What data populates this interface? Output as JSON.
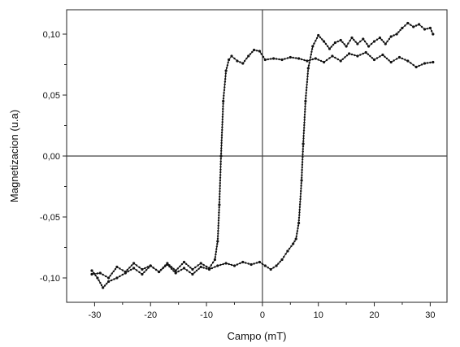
{
  "chart_data": {
    "type": "scatter",
    "title": "",
    "xlabel": "Campo (mT)",
    "ylabel": "Magnetizacion (u.a)",
    "xlim": [
      -35,
      33
    ],
    "ylim": [
      -0.12,
      0.12
    ],
    "x_ticks": [
      -30,
      -20,
      -10,
      0,
      10,
      20,
      30
    ],
    "x_tick_labels": [
      "-30",
      "-20",
      "-10",
      "0",
      "10",
      "20",
      "30"
    ],
    "y_ticks": [
      -0.1,
      -0.05,
      0.0,
      0.05,
      0.1
    ],
    "y_tick_labels": [
      "-0,10",
      "-0,05",
      "0,00",
      "0,05",
      "0,10"
    ],
    "grid": false,
    "zero_lines": true,
    "marker_color": "#111111",
    "series": [
      {
        "points": [
          [
            30.5,
            0.077
          ],
          [
            29,
            0.076
          ],
          [
            27.5,
            0.073
          ],
          [
            26,
            0.078
          ],
          [
            24.5,
            0.081
          ],
          [
            23,
            0.077
          ],
          [
            21.5,
            0.083
          ],
          [
            20,
            0.079
          ],
          [
            18.5,
            0.085
          ],
          [
            17,
            0.082
          ],
          [
            15.5,
            0.084
          ],
          [
            14,
            0.078
          ],
          [
            12.5,
            0.082
          ],
          [
            11,
            0.077
          ],
          [
            9.5,
            0.08
          ],
          [
            8,
            0.078
          ],
          [
            6.5,
            0.08
          ],
          [
            5,
            0.081
          ],
          [
            3.5,
            0.079
          ],
          [
            2,
            0.08
          ],
          [
            0.5,
            0.079
          ],
          [
            -0.5,
            0.086
          ],
          [
            -1.5,
            0.087
          ],
          [
            -2.5,
            0.082
          ],
          [
            -3.5,
            0.076
          ],
          [
            -4.5,
            0.078
          ],
          [
            -5.5,
            0.082
          ],
          [
            -6,
            0.079
          ],
          [
            -6.5,
            0.07
          ],
          [
            -7,
            0.045
          ],
          [
            -7.4,
            0.0
          ],
          [
            -7.7,
            -0.04
          ],
          [
            -8,
            -0.07
          ],
          [
            -8.5,
            -0.085
          ],
          [
            -9.5,
            -0.092
          ],
          [
            -11,
            -0.088
          ],
          [
            -12.5,
            -0.093
          ],
          [
            -14,
            -0.087
          ],
          [
            -15.5,
            -0.094
          ],
          [
            -17,
            -0.088
          ],
          [
            -18.5,
            -0.095
          ],
          [
            -20,
            -0.09
          ],
          [
            -21.5,
            -0.093
          ],
          [
            -23,
            -0.088
          ],
          [
            -24.5,
            -0.095
          ],
          [
            -26,
            -0.091
          ],
          [
            -27.5,
            -0.1
          ],
          [
            -29,
            -0.096
          ],
          [
            -30.5,
            -0.097
          ]
        ]
      },
      {
        "points": [
          [
            -30.5,
            -0.094
          ],
          [
            -29.5,
            -0.1
          ],
          [
            -28.5,
            -0.108
          ],
          [
            -27.5,
            -0.103
          ],
          [
            -26,
            -0.1
          ],
          [
            -24.5,
            -0.096
          ],
          [
            -23,
            -0.092
          ],
          [
            -21.5,
            -0.097
          ],
          [
            -20,
            -0.09
          ],
          [
            -18.5,
            -0.095
          ],
          [
            -17,
            -0.089
          ],
          [
            -15.5,
            -0.096
          ],
          [
            -14,
            -0.092
          ],
          [
            -12.5,
            -0.097
          ],
          [
            -11,
            -0.091
          ],
          [
            -9.5,
            -0.093
          ],
          [
            -8,
            -0.09
          ],
          [
            -6.5,
            -0.088
          ],
          [
            -5,
            -0.09
          ],
          [
            -3.5,
            -0.087
          ],
          [
            -2,
            -0.089
          ],
          [
            -0.5,
            -0.087
          ],
          [
            0.5,
            -0.09
          ],
          [
            1.5,
            -0.093
          ],
          [
            2.5,
            -0.09
          ],
          [
            3.5,
            -0.085
          ],
          [
            4.5,
            -0.078
          ],
          [
            5.5,
            -0.072
          ],
          [
            6,
            -0.068
          ],
          [
            6.5,
            -0.055
          ],
          [
            7,
            -0.02
          ],
          [
            7.3,
            0.01
          ],
          [
            7.7,
            0.045
          ],
          [
            8.2,
            0.072
          ],
          [
            9,
            0.09
          ],
          [
            10,
            0.099
          ],
          [
            11,
            0.094
          ],
          [
            12,
            0.088
          ],
          [
            13,
            0.093
          ],
          [
            14,
            0.095
          ],
          [
            15,
            0.09
          ],
          [
            16,
            0.097
          ],
          [
            17,
            0.092
          ],
          [
            18,
            0.096
          ],
          [
            19,
            0.09
          ],
          [
            20,
            0.094
          ],
          [
            21,
            0.097
          ],
          [
            22,
            0.092
          ],
          [
            23,
            0.098
          ],
          [
            24,
            0.1
          ],
          [
            25,
            0.105
          ],
          [
            26,
            0.109
          ],
          [
            27,
            0.106
          ],
          [
            28,
            0.108
          ],
          [
            29,
            0.104
          ],
          [
            30,
            0.105
          ],
          [
            30.5,
            0.1
          ]
        ]
      }
    ]
  }
}
